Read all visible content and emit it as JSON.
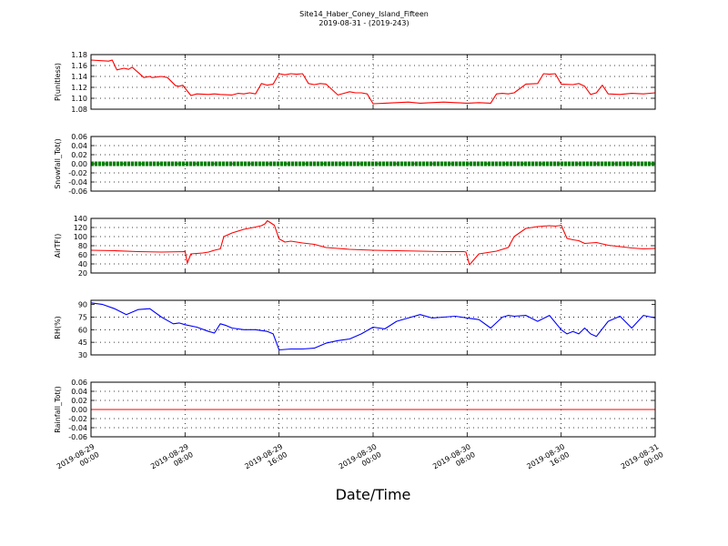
{
  "figure": {
    "title": "Site14_Haber_Coney_Island_Fifteen",
    "subtitle": "2019-08-31 - (2019-243)",
    "xlabel": "Date/Time",
    "x_ticks": [
      "2019-08-29\n00:00",
      "2019-08-29\n08:00",
      "2019-08-29\n16:00",
      "2019-08-30\n00:00",
      "2019-08-30\n08:00",
      "2019-08-30\n16:00",
      "2019-08-31\n00:00"
    ]
  },
  "chart_data": [
    {
      "type": "line",
      "ylabel": "P(unitless)",
      "ylim": [
        1.08,
        1.18
      ],
      "yticks": [
        1.08,
        1.1,
        1.12,
        1.14,
        1.16,
        1.18
      ],
      "ytick_labels": [
        "1.08",
        "1.10",
        "1.12",
        "1.14",
        "1.16",
        "1.18"
      ],
      "xlim": [
        0,
        48
      ],
      "grid": true,
      "series": [
        {
          "color": "#ff0000",
          "x": [
            0,
            1.5,
            1.8,
            2.2,
            2.8,
            3.2,
            3.5,
            4.5,
            5,
            5.2,
            6,
            6.5,
            7.2,
            7.5,
            7.8,
            8.5,
            9,
            10,
            10.5,
            11,
            12,
            12.5,
            13,
            13.5,
            14,
            14.5,
            15,
            15.5,
            16,
            16.5,
            17,
            17.5,
            18,
            18.5,
            19,
            19.5,
            20,
            21,
            22,
            22.5,
            23,
            23.5,
            24,
            25,
            26,
            27,
            28,
            29,
            30,
            31,
            32,
            33,
            34,
            34.5,
            35,
            35.5,
            36,
            37,
            38,
            38.5,
            39,
            39.5,
            40,
            41,
            41.5,
            42,
            42.5,
            43,
            43.5,
            44,
            45,
            46,
            47,
            48
          ],
          "y": [
            1.17,
            1.168,
            1.17,
            1.152,
            1.155,
            1.153,
            1.157,
            1.138,
            1.14,
            1.138,
            1.14,
            1.138,
            1.123,
            1.122,
            1.124,
            1.105,
            1.108,
            1.107,
            1.108,
            1.107,
            1.106,
            1.109,
            1.108,
            1.11,
            1.108,
            1.127,
            1.124,
            1.126,
            1.145,
            1.143,
            1.145,
            1.144,
            1.145,
            1.127,
            1.125,
            1.127,
            1.126,
            1.106,
            1.112,
            1.11,
            1.11,
            1.108,
            1.09,
            1.091,
            1.092,
            1.093,
            1.091,
            1.092,
            1.093,
            1.092,
            1.091,
            1.092,
            1.091,
            1.108,
            1.109,
            1.108,
            1.11,
            1.126,
            1.127,
            1.145,
            1.144,
            1.145,
            1.126,
            1.125,
            1.127,
            1.122,
            1.107,
            1.11,
            1.124,
            1.108,
            1.107,
            1.109,
            1.108,
            1.11
          ]
        }
      ]
    },
    {
      "type": "line",
      "ylabel": "Snowfall_Tot()",
      "ylim": [
        -0.06,
        0.06
      ],
      "yticks": [
        -0.06,
        -0.04,
        -0.02,
        0.0,
        0.02,
        0.04,
        0.06
      ],
      "ytick_labels": [
        "-0.06",
        "-0.04",
        "-0.02",
        "0.00",
        "0.02",
        "0.04",
        "0.06"
      ],
      "xlim": [
        0,
        48
      ],
      "grid": true,
      "series": [
        {
          "color": "#008000",
          "marker": "dot",
          "x": [
            0,
            48
          ],
          "y": [
            0.0,
            0.0
          ]
        }
      ]
    },
    {
      "type": "line",
      "ylabel": "AirTF()",
      "ylim": [
        20,
        140
      ],
      "yticks": [
        20,
        40,
        60,
        80,
        100,
        120,
        140
      ],
      "ytick_labels": [
        "20",
        "40",
        "60",
        "80",
        "100",
        "120",
        "140"
      ],
      "xlim": [
        0,
        48
      ],
      "grid": true,
      "series": [
        {
          "color": "#ff0000",
          "x": [
            0,
            2,
            4,
            6,
            8,
            7.8,
            7.9,
            8.0,
            8.2,
            8.5,
            9,
            9.5,
            10,
            10.5,
            11,
            11.3,
            12,
            13,
            14,
            14.5,
            14.8,
            15,
            15.3,
            15.6,
            16,
            16.5,
            17,
            18,
            19,
            20,
            21,
            22,
            24,
            26,
            28,
            30,
            31.7,
            31.9,
            32.2,
            33,
            34,
            34.5,
            35,
            35.5,
            36,
            37,
            38,
            39,
            39.5,
            39.8,
            40,
            40.5,
            41,
            41.5,
            42,
            43,
            44,
            45,
            46,
            47,
            48
          ],
          "y": [
            70,
            69,
            67,
            66,
            67,
            67,
            67,
            68,
            42,
            62,
            63,
            64,
            66,
            70,
            73,
            100,
            108,
            116,
            121,
            124,
            128,
            135,
            130,
            125,
            95,
            88,
            90,
            86,
            83,
            76,
            74,
            72,
            70,
            69,
            68,
            67,
            67,
            66,
            38,
            62,
            66,
            68,
            72,
            76,
            100,
            118,
            122,
            124,
            123,
            124,
            125,
            96,
            93,
            91,
            85,
            87,
            81,
            78,
            75,
            73,
            74
          ]
        }
      ]
    },
    {
      "type": "line",
      "ylabel": "RH(%)",
      "ylim": [
        30,
        95
      ],
      "yticks": [
        30,
        45,
        60,
        75,
        90
      ],
      "ytick_labels": [
        "30",
        "45",
        "60",
        "75",
        "90"
      ],
      "xlim": [
        0,
        48
      ],
      "grid": true,
      "series": [
        {
          "color": "#0000ff",
          "x": [
            0,
            1,
            2,
            3,
            4,
            5,
            6,
            7,
            7.5,
            8,
            9,
            10,
            10.5,
            11,
            11.5,
            12,
            13,
            14,
            15,
            15.5,
            16,
            17,
            18,
            19,
            20,
            21,
            22,
            23,
            24,
            25,
            26,
            27,
            28,
            29,
            30,
            31,
            32,
            33,
            34,
            35,
            35.5,
            36,
            37,
            38,
            39,
            40,
            40.5,
            41,
            41.5,
            42,
            42.5,
            43,
            44,
            45,
            46,
            47,
            48
          ],
          "y": [
            92,
            90,
            85,
            78,
            84,
            85,
            75,
            67,
            68,
            66,
            63,
            58,
            56,
            67,
            65,
            62,
            60,
            60,
            58,
            55,
            36,
            37,
            37,
            38,
            44,
            47,
            49,
            55,
            63,
            61,
            70,
            74,
            78,
            74,
            75,
            76,
            74,
            72,
            62,
            75,
            77,
            76,
            77,
            70,
            77,
            60,
            55,
            58,
            55,
            62,
            55,
            52,
            70,
            76,
            62,
            77,
            74
          ]
        }
      ]
    },
    {
      "type": "line",
      "ylabel": "Rainfall_Tot()",
      "ylim": [
        -0.06,
        0.06
      ],
      "yticks": [
        -0.06,
        -0.04,
        -0.02,
        0.0,
        0.02,
        0.04,
        0.06
      ],
      "ytick_labels": [
        "-0.06",
        "-0.04",
        "-0.02",
        "0.00",
        "0.02",
        "0.04",
        "0.06"
      ],
      "xlim": [
        0,
        48
      ],
      "grid": true,
      "series": [
        {
          "color": "#ff0000",
          "x": [
            0,
            48
          ],
          "y": [
            0.0,
            0.0
          ]
        }
      ]
    }
  ]
}
